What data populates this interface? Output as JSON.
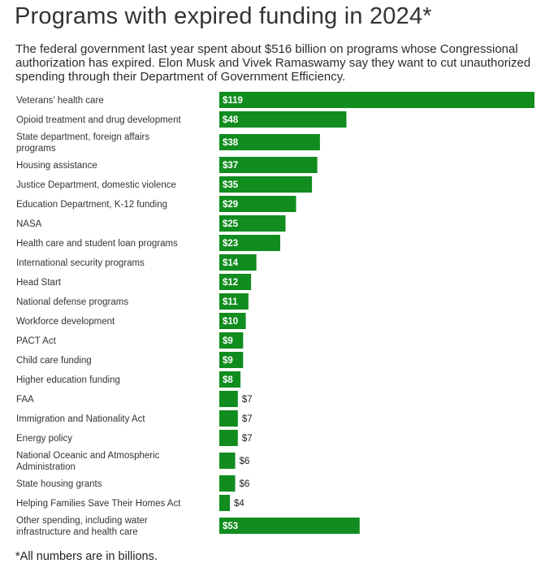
{
  "title": "Programs with expired funding in 2024*",
  "subtitle": "The federal government last year spent about $516 billion on programs whose Congressional authorization has expired. Elon Musk and Vivek Ramaswamy say they want to cut unauthorized spending through their Department of Government Efficiency.",
  "footnote": "*All numbers are in billions.",
  "colors": {
    "bar": "#118c1e",
    "label_inside": "#ffffff",
    "label_outside": "#222222",
    "category_text": "#333333"
  },
  "chart_data": {
    "type": "bar",
    "orientation": "horizontal",
    "categories": [
      "Veterans' health care",
      "Opioid treatment and drug development",
      "State department, foreign affairs programs",
      "Housing assistance",
      "Justice Department, domestic violence",
      "Education Department, K-12 funding",
      "NASA",
      "Health care and student loan programs",
      "International security programs",
      "Head Start",
      "National defense programs",
      "Workforce development",
      "PACT Act",
      "Child care funding",
      "Higher education funding",
      "FAA",
      "Immigration and Nationality Act",
      "Energy policy",
      "National Oceanic and Atmospheric Administration",
      "State housing grants",
      "Helping Families Save Their Homes Act",
      "Other spending, including water infrastructure and health care"
    ],
    "values": [
      119,
      48,
      38,
      37,
      35,
      29,
      25,
      23,
      14,
      12,
      11,
      10,
      9,
      9,
      8,
      7,
      7,
      7,
      6,
      6,
      4,
      53
    ],
    "data_labels": [
      "$119",
      "$48",
      "$38",
      "$37",
      "$35",
      "$29",
      "$25",
      "$23",
      "$14",
      "$12",
      "$11",
      "$10",
      "$9",
      "$9",
      "$8",
      "$7",
      "$7",
      "$7",
      "$6",
      "$6",
      "$4",
      "$53"
    ],
    "xlim": [
      0,
      119
    ],
    "grid": false,
    "legend": "none"
  }
}
